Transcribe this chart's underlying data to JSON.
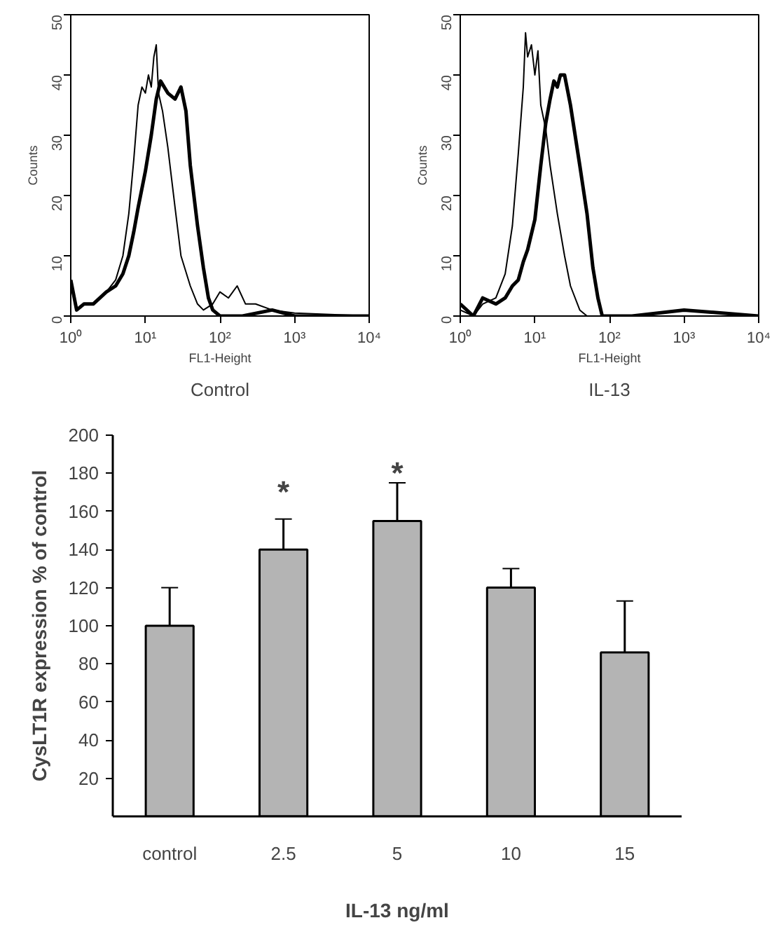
{
  "chart_data": [
    {
      "type": "line",
      "title": "Control",
      "xlabel": "FL1-Height",
      "ylabel": "Counts",
      "log": "x",
      "xlim": [
        1,
        10000
      ],
      "ylim": [
        0,
        50
      ],
      "xticks": [
        {
          "value": 1,
          "label": "10⁰"
        },
        {
          "value": 10,
          "label": "10¹"
        },
        {
          "value": 100,
          "label": "10²"
        },
        {
          "value": 1000,
          "label": "10³"
        },
        {
          "value": 10000,
          "label": "10⁴"
        }
      ],
      "yticks": [
        0,
        10,
        20,
        30,
        40,
        50
      ],
      "series": [
        {
          "color": "#000000",
          "x": [
            1,
            1.2,
            1.5,
            2,
            3,
            4,
            5,
            6,
            7,
            8,
            9,
            10,
            11,
            12,
            13,
            14,
            15,
            17,
            20,
            25,
            30,
            40,
            50,
            60,
            80,
            100,
            130,
            170,
            220,
            300,
            500,
            1000,
            10000
          ],
          "values": [
            5,
            1,
            2,
            2,
            4,
            6,
            10,
            17,
            26,
            35,
            38,
            37,
            40,
            38,
            43,
            45,
            37,
            34,
            28,
            18,
            10,
            5,
            2,
            1,
            2,
            4,
            3,
            5,
            2,
            2,
            1,
            0.5,
            0
          ]
        },
        {
          "color": "#000000",
          "x": [
            1,
            1.2,
            1.5,
            2,
            3,
            4,
            5,
            6,
            7,
            8,
            10,
            12,
            14,
            16,
            20,
            25,
            30,
            35,
            40,
            50,
            60,
            70,
            80,
            100,
            200,
            500,
            1000,
            10000
          ],
          "values": [
            6,
            1,
            2,
            2,
            4,
            5,
            7,
            10,
            14,
            18,
            24,
            30,
            36,
            39,
            37,
            36,
            38,
            34,
            25,
            15,
            8,
            3,
            1,
            0,
            0,
            1,
            0,
            0
          ]
        }
      ]
    },
    {
      "type": "line",
      "title": "IL-13",
      "xlabel": "FL1-Height",
      "ylabel": "Counts",
      "log": "x",
      "xlim": [
        1,
        10000
      ],
      "ylim": [
        0,
        50
      ],
      "xticks": [
        {
          "value": 1,
          "label": "10⁰"
        },
        {
          "value": 10,
          "label": "10¹"
        },
        {
          "value": 100,
          "label": "10²"
        },
        {
          "value": 1000,
          "label": "10³"
        },
        {
          "value": 10000,
          "label": "10⁴"
        }
      ],
      "yticks": [
        0,
        10,
        20,
        30,
        40,
        50
      ],
      "series": [
        {
          "color": "#000000",
          "x": [
            1,
            1.5,
            2,
            3,
            4,
            5,
            6,
            7,
            7.5,
            8,
            9,
            10,
            11,
            12,
            14,
            16,
            20,
            25,
            30,
            40,
            50,
            1000,
            10000
          ],
          "values": [
            1,
            0,
            2,
            3,
            7,
            15,
            27,
            38,
            47,
            43,
            45,
            40,
            44,
            35,
            31,
            25,
            17,
            10,
            5,
            1,
            0,
            0,
            0
          ]
        },
        {
          "color": "#000000",
          "x": [
            1,
            1.5,
            2,
            3,
            4,
            5,
            6,
            7,
            8,
            10,
            12,
            14,
            16,
            18,
            20,
            22,
            25,
            30,
            40,
            50,
            60,
            70,
            80,
            200,
            1000,
            10000
          ],
          "values": [
            2,
            0,
            3,
            2,
            3,
            5,
            6,
            9,
            11,
            16,
            25,
            32,
            36,
            39,
            38,
            40,
            40,
            35,
            25,
            17,
            8,
            3,
            0,
            0,
            1,
            0
          ]
        }
      ]
    },
    {
      "type": "bar",
      "xlabel": "IL-13 ng/ml",
      "ylabel": "CysLT1R expression % of control",
      "categories": [
        "control",
        "2.5",
        "5",
        "10",
        "15"
      ],
      "values": [
        100,
        140,
        155,
        120,
        86
      ],
      "errors": [
        [
          100,
          120
        ],
        [
          140,
          156
        ],
        [
          155,
          175
        ],
        [
          120,
          130
        ],
        [
          86,
          113
        ]
      ],
      "color": "#b4b4b4",
      "ylim": [
        0,
        200
      ],
      "yticks": [
        20,
        40,
        60,
        80,
        100,
        120,
        140,
        160,
        180,
        200
      ],
      "annotations": [
        "*",
        "*"
      ]
    }
  ]
}
